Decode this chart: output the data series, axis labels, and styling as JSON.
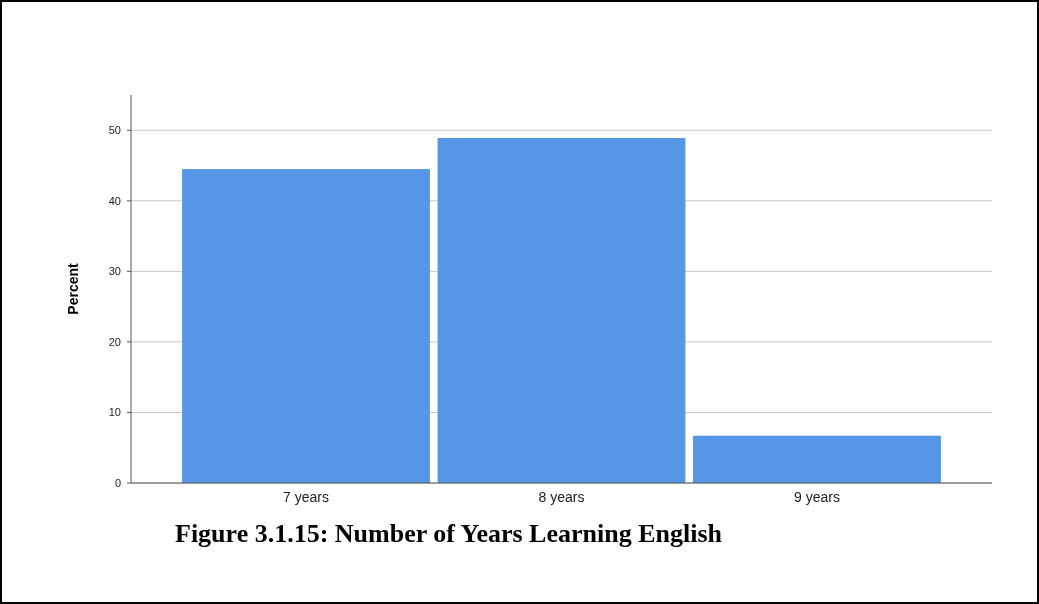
{
  "chart_data": {
    "type": "bar",
    "title": "Figure 3.1.15: Number of Years Learning English",
    "ylabel": "Percent",
    "categories": [
      "7 years",
      "8 years",
      "9 years"
    ],
    "values": [
      44.5,
      48.9,
      6.7
    ],
    "color": "#5596e6",
    "ylim": [
      0,
      55
    ],
    "yticks": [
      0,
      10,
      20,
      30,
      40,
      50
    ],
    "grid": "y"
  }
}
